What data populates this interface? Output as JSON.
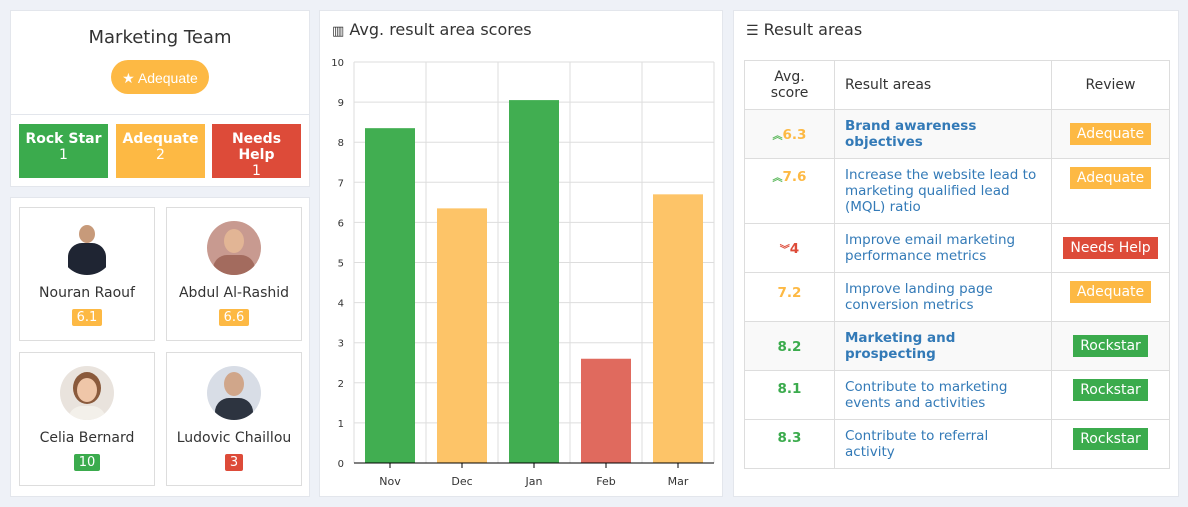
{
  "team": {
    "name": "Marketing Team",
    "rating": "Adequate",
    "stats": [
      {
        "label": "Rock Star",
        "count": "1",
        "color": "#3bab4d"
      },
      {
        "label": "Adequate",
        "count": "2",
        "color": "#fdb944"
      },
      {
        "label": "Needs Help",
        "count": "1",
        "color": "#dd4b39"
      }
    ]
  },
  "people": [
    {
      "name": "Nouran Raouf",
      "score": "6.1",
      "color": "#fdb944"
    },
    {
      "name": "Abdul Al-Rashid",
      "score": "6.6",
      "color": "#fdb944"
    },
    {
      "name": "Celia Bernard",
      "score": "10",
      "color": "#3bab4d"
    },
    {
      "name": "Ludovic Chaillou",
      "score": "3",
      "color": "#dd4b39"
    }
  ],
  "chart_panel": {
    "title": "Avg. result area scores",
    "icon": "bar-chart-icon"
  },
  "chart_data": {
    "type": "bar",
    "categories": [
      "Nov",
      "Dec",
      "Jan",
      "Feb",
      "Mar"
    ],
    "values": [
      8.35,
      6.35,
      9.05,
      2.6,
      6.7
    ],
    "colors": [
      "#41ae51",
      "#fdc468",
      "#41ae51",
      "#e06a5e",
      "#fdc468"
    ],
    "ylim": [
      0,
      10
    ],
    "yticks": [
      0,
      1,
      2,
      3,
      4,
      5,
      6,
      7,
      8,
      9,
      10
    ],
    "grid": true
  },
  "results": {
    "title": "Result areas",
    "icon": "sliders-icon",
    "headers": [
      "Avg. score",
      "Result areas",
      "Review"
    ],
    "rows": [
      {
        "score": "6.3",
        "trend": "up",
        "score_color": "#fdb944",
        "area": "Brand awareness objectives",
        "bold": true,
        "review": "Adequate",
        "review_color": "#fdb944"
      },
      {
        "score": "7.6",
        "trend": "up",
        "score_color": "#fdb944",
        "area": "Increase the website lead to marketing qualified lead (MQL) ratio",
        "bold": false,
        "review": "Adequate",
        "review_color": "#fdb944"
      },
      {
        "score": "4",
        "trend": "down",
        "score_color": "#dd4b39",
        "area": "Improve email marketing performance metrics",
        "bold": false,
        "review": "Needs Help",
        "review_color": "#dd4b39"
      },
      {
        "score": "7.2",
        "trend": "",
        "score_color": "#fdb944",
        "area": "Improve landing page conversion metrics",
        "bold": false,
        "review": "Adequate",
        "review_color": "#fdb944"
      },
      {
        "score": "8.2",
        "trend": "",
        "score_color": "#3bab4d",
        "area": "Marketing and prospecting",
        "bold": true,
        "review": "Rockstar",
        "review_color": "#3bab4d"
      },
      {
        "score": "8.1",
        "trend": "",
        "score_color": "#3bab4d",
        "area": "Contribute to marketing events and activities",
        "bold": false,
        "review": "Rockstar",
        "review_color": "#3bab4d"
      },
      {
        "score": "8.3",
        "trend": "",
        "score_color": "#3bab4d",
        "area": "Contribute to referral activity",
        "bold": false,
        "review": "Rockstar",
        "review_color": "#3bab4d"
      }
    ]
  }
}
